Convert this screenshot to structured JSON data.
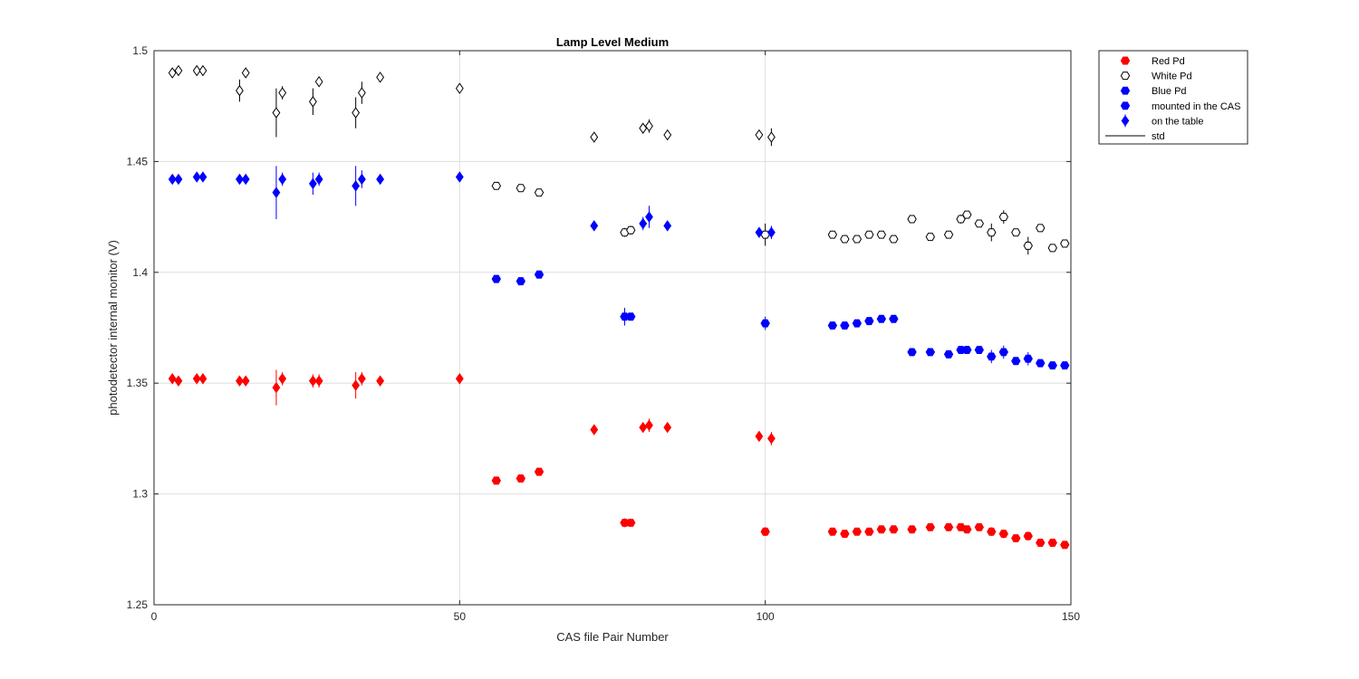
{
  "chart_data": {
    "type": "scatter",
    "title": "Lamp Level Medium",
    "xlabel": "CAS file Pair Number",
    "ylabel": "photodetector internal monitor (V)",
    "xlim": [
      0,
      150
    ],
    "ylim": [
      1.25,
      1.5
    ],
    "xticks": [
      0,
      50,
      100,
      150
    ],
    "yticks": [
      1.25,
      1.3,
      1.35,
      1.4,
      1.45,
      1.5
    ],
    "xtick_labels": [
      "0",
      "50",
      "100",
      "150"
    ],
    "ytick_labels": [
      "1.25",
      "1.3",
      "1.35",
      "1.4",
      "1.45",
      "1.5"
    ],
    "grid": true,
    "legend_position": "outside-top-right",
    "legend": [
      {
        "label": "Red Pd",
        "marker": "hexagon",
        "color": "#ff0000",
        "filled": true
      },
      {
        "label": "White Pd",
        "marker": "hexagon",
        "color": "#000000",
        "filled": false
      },
      {
        "label": "Blue Pd",
        "marker": "hexagon",
        "color": "#0000ff",
        "filled": true
      },
      {
        "label": "mounted in the CAS",
        "marker": "hexagon",
        "color": "#0000ff",
        "filled": true
      },
      {
        "label": "on the table",
        "marker": "diamond",
        "color": "#0000ff",
        "filled": true
      },
      {
        "label": "std",
        "marker": "line",
        "color": "#000000",
        "filled": false
      }
    ],
    "series": [
      {
        "key": "red",
        "color": "#ff0000",
        "filled": true,
        "points": [
          {
            "x": 3,
            "y": 1.352,
            "e": 0.002,
            "m": "diamond"
          },
          {
            "x": 4,
            "y": 1.351,
            "e": 0.002,
            "m": "diamond"
          },
          {
            "x": 7,
            "y": 1.352,
            "e": 0.002,
            "m": "diamond"
          },
          {
            "x": 8,
            "y": 1.352,
            "e": 0.002,
            "m": "diamond"
          },
          {
            "x": 14,
            "y": 1.351,
            "e": 0.002,
            "m": "diamond"
          },
          {
            "x": 15,
            "y": 1.351,
            "e": 0.002,
            "m": "diamond"
          },
          {
            "x": 20,
            "y": 1.348,
            "e": 0.008,
            "m": "diamond"
          },
          {
            "x": 21,
            "y": 1.352,
            "e": 0.003,
            "m": "diamond"
          },
          {
            "x": 26,
            "y": 1.351,
            "e": 0.003,
            "m": "diamond"
          },
          {
            "x": 27,
            "y": 1.351,
            "e": 0.003,
            "m": "diamond"
          },
          {
            "x": 33,
            "y": 1.349,
            "e": 0.006,
            "m": "diamond"
          },
          {
            "x": 34,
            "y": 1.352,
            "e": 0.003,
            "m": "diamond"
          },
          {
            "x": 37,
            "y": 1.351,
            "e": 0.002,
            "m": "diamond"
          },
          {
            "x": 50,
            "y": 1.352,
            "e": 0.002,
            "m": "diamond"
          },
          {
            "x": 56,
            "y": 1.306,
            "e": 0.001,
            "m": "hexagon"
          },
          {
            "x": 60,
            "y": 1.307,
            "e": 0.001,
            "m": "hexagon"
          },
          {
            "x": 63,
            "y": 1.31,
            "e": 0.001,
            "m": "hexagon"
          },
          {
            "x": 72,
            "y": 1.329,
            "e": 0.002,
            "m": "diamond"
          },
          {
            "x": 77,
            "y": 1.287,
            "e": 0.002,
            "m": "hexagon"
          },
          {
            "x": 78,
            "y": 1.287,
            "e": 0.001,
            "m": "hexagon"
          },
          {
            "x": 80,
            "y": 1.33,
            "e": 0.002,
            "m": "diamond"
          },
          {
            "x": 81,
            "y": 1.331,
            "e": 0.003,
            "m": "diamond"
          },
          {
            "x": 84,
            "y": 1.33,
            "e": 0.002,
            "m": "diamond"
          },
          {
            "x": 99,
            "y": 1.326,
            "e": 0.002,
            "m": "diamond"
          },
          {
            "x": 100,
            "y": 1.283,
            "e": 0.002,
            "m": "hexagon"
          },
          {
            "x": 101,
            "y": 1.325,
            "e": 0.003,
            "m": "diamond"
          },
          {
            "x": 111,
            "y": 1.283,
            "e": 0.001,
            "m": "hexagon"
          },
          {
            "x": 113,
            "y": 1.282,
            "e": 0.001,
            "m": "hexagon"
          },
          {
            "x": 115,
            "y": 1.283,
            "e": 0.001,
            "m": "hexagon"
          },
          {
            "x": 117,
            "y": 1.283,
            "e": 0.001,
            "m": "hexagon"
          },
          {
            "x": 119,
            "y": 1.284,
            "e": 0.001,
            "m": "hexagon"
          },
          {
            "x": 121,
            "y": 1.284,
            "e": 0.001,
            "m": "hexagon"
          },
          {
            "x": 124,
            "y": 1.284,
            "e": 0.001,
            "m": "hexagon"
          },
          {
            "x": 127,
            "y": 1.285,
            "e": 0.001,
            "m": "hexagon"
          },
          {
            "x": 130,
            "y": 1.285,
            "e": 0.001,
            "m": "hexagon"
          },
          {
            "x": 132,
            "y": 1.285,
            "e": 0.001,
            "m": "hexagon"
          },
          {
            "x": 133,
            "y": 1.284,
            "e": 0.001,
            "m": "hexagon"
          },
          {
            "x": 135,
            "y": 1.285,
            "e": 0.001,
            "m": "hexagon"
          },
          {
            "x": 137,
            "y": 1.283,
            "e": 0.002,
            "m": "hexagon"
          },
          {
            "x": 139,
            "y": 1.282,
            "e": 0.002,
            "m": "hexagon"
          },
          {
            "x": 141,
            "y": 1.28,
            "e": 0.001,
            "m": "hexagon"
          },
          {
            "x": 143,
            "y": 1.281,
            "e": 0.002,
            "m": "hexagon"
          },
          {
            "x": 145,
            "y": 1.278,
            "e": 0.001,
            "m": "hexagon"
          },
          {
            "x": 147,
            "y": 1.278,
            "e": 0.001,
            "m": "hexagon"
          },
          {
            "x": 149,
            "y": 1.277,
            "e": 0.001,
            "m": "hexagon"
          }
        ]
      },
      {
        "key": "white",
        "color": "#000000",
        "filled": false,
        "points": [
          {
            "x": 3,
            "y": 1.49,
            "e": 0.002,
            "m": "diamond"
          },
          {
            "x": 4,
            "y": 1.491,
            "e": 0.002,
            "m": "diamond"
          },
          {
            "x": 7,
            "y": 1.491,
            "e": 0.002,
            "m": "diamond"
          },
          {
            "x": 8,
            "y": 1.491,
            "e": 0.002,
            "m": "diamond"
          },
          {
            "x": 14,
            "y": 1.482,
            "e": 0.005,
            "m": "diamond"
          },
          {
            "x": 15,
            "y": 1.49,
            "e": 0.002,
            "m": "diamond"
          },
          {
            "x": 20,
            "y": 1.472,
            "e": 0.011,
            "m": "diamond"
          },
          {
            "x": 21,
            "y": 1.481,
            "e": 0.003,
            "m": "diamond"
          },
          {
            "x": 26,
            "y": 1.477,
            "e": 0.006,
            "m": "diamond"
          },
          {
            "x": 27,
            "y": 1.486,
            "e": 0.002,
            "m": "diamond"
          },
          {
            "x": 33,
            "y": 1.472,
            "e": 0.007,
            "m": "diamond"
          },
          {
            "x": 34,
            "y": 1.481,
            "e": 0.005,
            "m": "diamond"
          },
          {
            "x": 37,
            "y": 1.488,
            "e": 0.002,
            "m": "diamond"
          },
          {
            "x": 50,
            "y": 1.483,
            "e": 0.002,
            "m": "diamond"
          },
          {
            "x": 56,
            "y": 1.439,
            "e": 0.001,
            "m": "hexagon"
          },
          {
            "x": 60,
            "y": 1.438,
            "e": 0.001,
            "m": "hexagon"
          },
          {
            "x": 63,
            "y": 1.436,
            "e": 0.001,
            "m": "hexagon"
          },
          {
            "x": 72,
            "y": 1.461,
            "e": 0.002,
            "m": "diamond"
          },
          {
            "x": 77,
            "y": 1.418,
            "e": 0.002,
            "m": "hexagon"
          },
          {
            "x": 78,
            "y": 1.419,
            "e": 0.002,
            "m": "hexagon"
          },
          {
            "x": 80,
            "y": 1.465,
            "e": 0.002,
            "m": "diamond"
          },
          {
            "x": 81,
            "y": 1.466,
            "e": 0.003,
            "m": "diamond"
          },
          {
            "x": 84,
            "y": 1.462,
            "e": 0.002,
            "m": "diamond"
          },
          {
            "x": 99,
            "y": 1.462,
            "e": 0.002,
            "m": "diamond"
          },
          {
            "x": 100,
            "y": 1.417,
            "e": 0.005,
            "m": "hexagon"
          },
          {
            "x": 101,
            "y": 1.461,
            "e": 0.004,
            "m": "diamond"
          },
          {
            "x": 111,
            "y": 1.417,
            "e": 0.001,
            "m": "hexagon"
          },
          {
            "x": 113,
            "y": 1.415,
            "e": 0.001,
            "m": "hexagon"
          },
          {
            "x": 115,
            "y": 1.415,
            "e": 0.001,
            "m": "hexagon"
          },
          {
            "x": 117,
            "y": 1.417,
            "e": 0.001,
            "m": "hexagon"
          },
          {
            "x": 119,
            "y": 1.417,
            "e": 0.001,
            "m": "hexagon"
          },
          {
            "x": 121,
            "y": 1.415,
            "e": 0.001,
            "m": "hexagon"
          },
          {
            "x": 124,
            "y": 1.424,
            "e": 0.001,
            "m": "hexagon"
          },
          {
            "x": 127,
            "y": 1.416,
            "e": 0.001,
            "m": "hexagon"
          },
          {
            "x": 130,
            "y": 1.417,
            "e": 0.001,
            "m": "hexagon"
          },
          {
            "x": 132,
            "y": 1.424,
            "e": 0.002,
            "m": "hexagon"
          },
          {
            "x": 133,
            "y": 1.426,
            "e": 0.001,
            "m": "hexagon"
          },
          {
            "x": 135,
            "y": 1.422,
            "e": 0.001,
            "m": "hexagon"
          },
          {
            "x": 137,
            "y": 1.418,
            "e": 0.004,
            "m": "hexagon"
          },
          {
            "x": 139,
            "y": 1.425,
            "e": 0.003,
            "m": "hexagon"
          },
          {
            "x": 141,
            "y": 1.418,
            "e": 0.001,
            "m": "hexagon"
          },
          {
            "x": 143,
            "y": 1.412,
            "e": 0.004,
            "m": "hexagon"
          },
          {
            "x": 145,
            "y": 1.42,
            "e": 0.001,
            "m": "hexagon"
          },
          {
            "x": 147,
            "y": 1.411,
            "e": 0.001,
            "m": "hexagon"
          },
          {
            "x": 149,
            "y": 1.413,
            "e": 0.001,
            "m": "hexagon"
          }
        ]
      },
      {
        "key": "blue",
        "color": "#0000ff",
        "filled": true,
        "points": [
          {
            "x": 3,
            "y": 1.442,
            "e": 0.002,
            "m": "diamond"
          },
          {
            "x": 4,
            "y": 1.442,
            "e": 0.002,
            "m": "diamond"
          },
          {
            "x": 7,
            "y": 1.443,
            "e": 0.002,
            "m": "diamond"
          },
          {
            "x": 8,
            "y": 1.443,
            "e": 0.002,
            "m": "diamond"
          },
          {
            "x": 14,
            "y": 1.442,
            "e": 0.002,
            "m": "diamond"
          },
          {
            "x": 15,
            "y": 1.442,
            "e": 0.002,
            "m": "diamond"
          },
          {
            "x": 20,
            "y": 1.436,
            "e": 0.012,
            "m": "diamond"
          },
          {
            "x": 21,
            "y": 1.442,
            "e": 0.003,
            "m": "diamond"
          },
          {
            "x": 26,
            "y": 1.44,
            "e": 0.005,
            "m": "diamond"
          },
          {
            "x": 27,
            "y": 1.442,
            "e": 0.003,
            "m": "diamond"
          },
          {
            "x": 33,
            "y": 1.439,
            "e": 0.009,
            "m": "diamond"
          },
          {
            "x": 34,
            "y": 1.442,
            "e": 0.004,
            "m": "diamond"
          },
          {
            "x": 37,
            "y": 1.442,
            "e": 0.002,
            "m": "diamond"
          },
          {
            "x": 50,
            "y": 1.443,
            "e": 0.002,
            "m": "diamond"
          },
          {
            "x": 56,
            "y": 1.397,
            "e": 0.001,
            "m": "hexagon"
          },
          {
            "x": 60,
            "y": 1.396,
            "e": 0.001,
            "m": "hexagon"
          },
          {
            "x": 63,
            "y": 1.399,
            "e": 0.001,
            "m": "hexagon"
          },
          {
            "x": 72,
            "y": 1.421,
            "e": 0.002,
            "m": "diamond"
          },
          {
            "x": 77,
            "y": 1.38,
            "e": 0.004,
            "m": "hexagon"
          },
          {
            "x": 78,
            "y": 1.38,
            "e": 0.001,
            "m": "hexagon"
          },
          {
            "x": 80,
            "y": 1.422,
            "e": 0.003,
            "m": "diamond"
          },
          {
            "x": 81,
            "y": 1.425,
            "e": 0.005,
            "m": "diamond"
          },
          {
            "x": 84,
            "y": 1.421,
            "e": 0.002,
            "m": "diamond"
          },
          {
            "x": 99,
            "y": 1.418,
            "e": 0.002,
            "m": "diamond"
          },
          {
            "x": 100,
            "y": 1.377,
            "e": 0.003,
            "m": "hexagon"
          },
          {
            "x": 101,
            "y": 1.418,
            "e": 0.003,
            "m": "diamond"
          },
          {
            "x": 111,
            "y": 1.376,
            "e": 0.001,
            "m": "hexagon"
          },
          {
            "x": 113,
            "y": 1.376,
            "e": 0.001,
            "m": "hexagon"
          },
          {
            "x": 115,
            "y": 1.377,
            "e": 0.001,
            "m": "hexagon"
          },
          {
            "x": 117,
            "y": 1.378,
            "e": 0.001,
            "m": "hexagon"
          },
          {
            "x": 119,
            "y": 1.379,
            "e": 0.001,
            "m": "hexagon"
          },
          {
            "x": 121,
            "y": 1.379,
            "e": 0.001,
            "m": "hexagon"
          },
          {
            "x": 124,
            "y": 1.364,
            "e": 0.001,
            "m": "hexagon"
          },
          {
            "x": 127,
            "y": 1.364,
            "e": 0.001,
            "m": "hexagon"
          },
          {
            "x": 130,
            "y": 1.363,
            "e": 0.001,
            "m": "hexagon"
          },
          {
            "x": 132,
            "y": 1.365,
            "e": 0.001,
            "m": "hexagon"
          },
          {
            "x": 133,
            "y": 1.365,
            "e": 0.001,
            "m": "hexagon"
          },
          {
            "x": 135,
            "y": 1.365,
            "e": 0.001,
            "m": "hexagon"
          },
          {
            "x": 137,
            "y": 1.362,
            "e": 0.003,
            "m": "hexagon"
          },
          {
            "x": 139,
            "y": 1.364,
            "e": 0.003,
            "m": "hexagon"
          },
          {
            "x": 141,
            "y": 1.36,
            "e": 0.001,
            "m": "hexagon"
          },
          {
            "x": 143,
            "y": 1.361,
            "e": 0.003,
            "m": "hexagon"
          },
          {
            "x": 145,
            "y": 1.359,
            "e": 0.001,
            "m": "hexagon"
          },
          {
            "x": 147,
            "y": 1.358,
            "e": 0.001,
            "m": "hexagon"
          },
          {
            "x": 149,
            "y": 1.358,
            "e": 0.001,
            "m": "hexagon"
          }
        ]
      }
    ]
  }
}
